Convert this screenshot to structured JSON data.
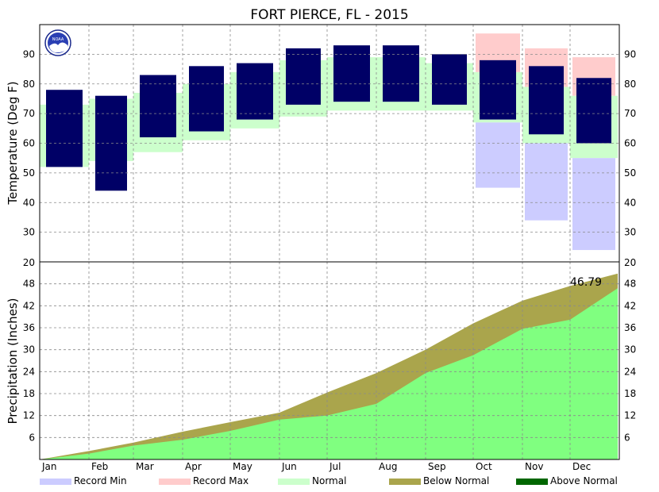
{
  "chart_data": [
    {
      "type": "bar",
      "title": "FORT PIERCE, FL - 2015",
      "ylabel": "Temperature (Deg F)",
      "ylim": [
        20,
        100
      ],
      "yticks": [
        30,
        40,
        50,
        60,
        70,
        80,
        90
      ],
      "months": [
        "Jan",
        "Feb",
        "Mar",
        "Apr",
        "May",
        "Jun",
        "Jul",
        "Aug",
        "Sep",
        "Oct",
        "Nov",
        "Dec"
      ],
      "grid": true,
      "colors": {
        "actual": "#000066",
        "normal": "#ccffcc",
        "record_min": "#ccccff",
        "record_max": "#ffcccc"
      },
      "monthly_normal": {
        "months": [
          "Jan",
          "Feb",
          "Mar",
          "Apr",
          "May",
          "Jun",
          "Jul",
          "Aug",
          "Sep",
          "Oct",
          "Nov",
          "Dec"
        ],
        "low": [
          52,
          54,
          57,
          61,
          65,
          69,
          71,
          71,
          71,
          67,
          60,
          55
        ],
        "high": [
          73,
          75,
          77,
          80,
          84,
          88,
          89,
          89,
          87,
          84,
          79,
          76
        ]
      },
      "monthly_actual": {
        "months": [
          "Jan",
          "Feb",
          "Mar",
          "Apr",
          "May",
          "Jun",
          "Jul",
          "Aug",
          "Sep",
          "Oct",
          "Nov",
          "Dec"
        ],
        "low": [
          52,
          44,
          62,
          64,
          68,
          73,
          74,
          74,
          73,
          68,
          63,
          60
        ],
        "high": [
          78,
          76,
          83,
          86,
          87,
          92,
          93,
          93,
          90,
          88,
          86,
          82
        ]
      },
      "monthly_record": {
        "months": [
          "Oct",
          "Nov",
          "Dec"
        ],
        "min": [
          45,
          34,
          24
        ],
        "max": [
          97,
          92,
          89
        ]
      }
    },
    {
      "type": "area",
      "ylabel": "Precipitation (Inches)",
      "ylim": [
        0,
        54
      ],
      "yticks": [
        6,
        12,
        18,
        24,
        30,
        36,
        42,
        48
      ],
      "top_tick_label": "20",
      "months": [
        "Jan",
        "Feb",
        "Mar",
        "Apr",
        "May",
        "Jun",
        "Jul",
        "Aug",
        "Sep",
        "Oct",
        "Nov",
        "Dec"
      ],
      "day_of_year": [
        1,
        32,
        60,
        91,
        121,
        152,
        182,
        213,
        244,
        274,
        305,
        335,
        365
      ],
      "normal_cumulative": [
        0,
        2.3,
        4.6,
        7.6,
        10.2,
        12.8,
        18.3,
        23.6,
        30.0,
        37.2,
        43.4,
        47.4,
        50.8
      ],
      "actual_cumulative": [
        0,
        1.6,
        3.8,
        5.4,
        7.8,
        10.9,
        12.0,
        15.2,
        23.6,
        28.5,
        35.7,
        38.2,
        46.79
      ],
      "total_label": "46.79",
      "grid": true,
      "colors": {
        "actual": "#80ff80",
        "below_normal": "#aaa54c",
        "above_normal": "#006600"
      }
    }
  ],
  "legend": [
    {
      "label": "Record Min",
      "color": "#ccccff"
    },
    {
      "label": "Record Max",
      "color": "#ffcccc"
    },
    {
      "label": "Normal",
      "color": "#ccffcc"
    },
    {
      "label": "Below Normal",
      "color": "#aaa54c"
    },
    {
      "label": "Above Normal",
      "color": "#006600"
    }
  ],
  "logo": {
    "text": "NOAA"
  }
}
